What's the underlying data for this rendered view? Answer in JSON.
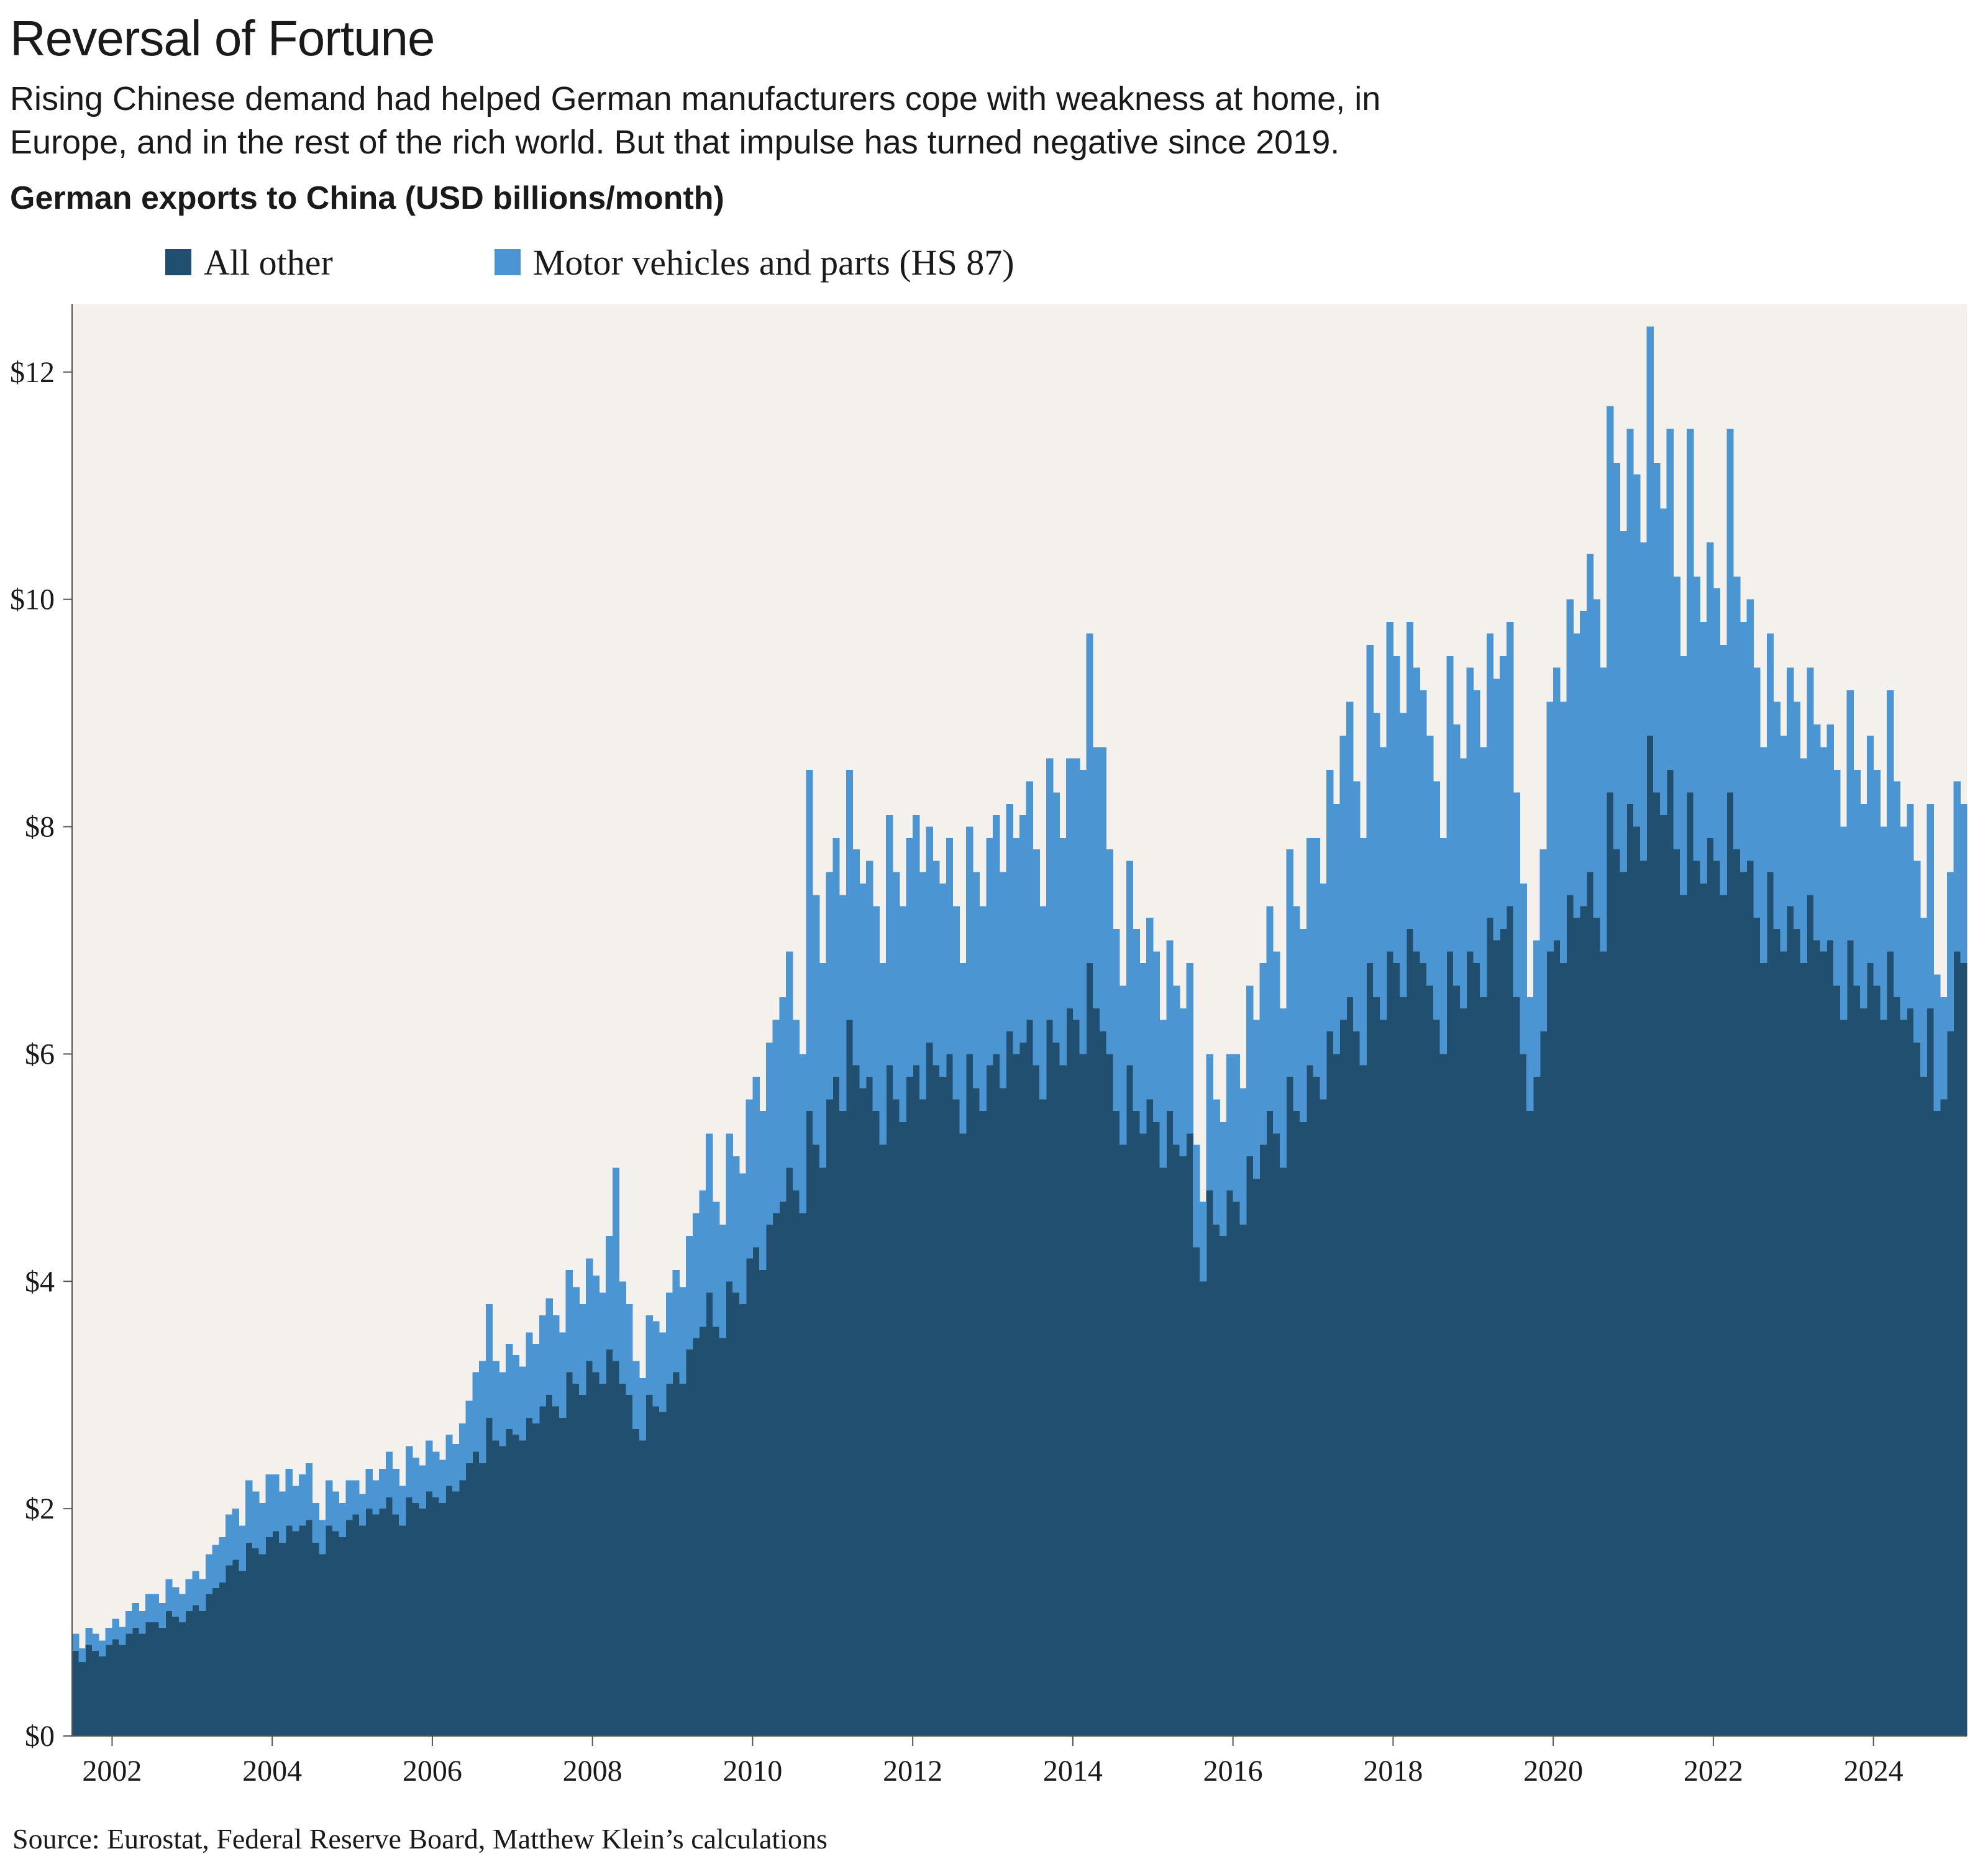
{
  "header": {
    "title": "Reversal of Fortune",
    "subtitle_lines": [
      "Rising Chinese demand had helped German manufacturers cope with weakness at home, in",
      "Europe, and in the rest of the rich world. But that impulse has turned negative since 2019."
    ],
    "chart_heading": "German exports to China (USD billions/month)"
  },
  "legend": [
    {
      "label": "All other",
      "color": "#214f70"
    },
    {
      "label": "Motor vehicles and parts (HS 87)",
      "color": "#4b96d2"
    }
  ],
  "source": "Source: Eurostat, Federal Reserve Board, Matthew Klein’s calculations",
  "chart_data": {
    "type": "bar",
    "stacked": true,
    "title": "German exports to China (USD billions/month)",
    "xlabel": "",
    "ylabel": "USD billions per month",
    "start_month": "2002-01",
    "end_month": "2025-08",
    "ylim": [
      0,
      12.6
    ],
    "plot_bg": "#f4f1ec",
    "axis_color": "#555555",
    "grid": false,
    "legend_position": "top",
    "y_ticks": [
      {
        "value": 0,
        "label": "$0"
      },
      {
        "value": 2,
        "label": "$2"
      },
      {
        "value": 4,
        "label": "$4"
      },
      {
        "value": 6,
        "label": "$6"
      },
      {
        "value": 8,
        "label": "$8"
      },
      {
        "value": 10,
        "label": "$10"
      },
      {
        "value": 12,
        "label": "$12"
      }
    ],
    "x_ticks": [
      {
        "year": 2002,
        "label": "2002"
      },
      {
        "year": 2004,
        "label": "2004"
      },
      {
        "year": 2006,
        "label": "2006"
      },
      {
        "year": 2008,
        "label": "2008"
      },
      {
        "year": 2010,
        "label": "2010"
      },
      {
        "year": 2012,
        "label": "2012"
      },
      {
        "year": 2014,
        "label": "2014"
      },
      {
        "year": 2016,
        "label": "2016"
      },
      {
        "year": 2018,
        "label": "2018"
      },
      {
        "year": 2020,
        "label": "2020"
      },
      {
        "year": 2022,
        "label": "2022"
      },
      {
        "year": 2024,
        "label": "2024"
      }
    ],
    "series": [
      {
        "name": "All other",
        "color": "#214f70",
        "values": [
          0.75,
          0.65,
          0.8,
          0.75,
          0.7,
          0.8,
          0.85,
          0.8,
          0.9,
          0.95,
          0.9,
          1.0,
          1.0,
          0.95,
          1.1,
          1.05,
          1.0,
          1.1,
          1.15,
          1.1,
          1.25,
          1.3,
          1.35,
          1.5,
          1.55,
          1.45,
          1.7,
          1.65,
          1.6,
          1.75,
          1.8,
          1.7,
          1.85,
          1.8,
          1.85,
          1.9,
          1.7,
          1.6,
          1.85,
          1.8,
          1.75,
          1.9,
          1.95,
          1.85,
          2.0,
          1.95,
          2.0,
          2.1,
          1.95,
          1.85,
          2.1,
          2.05,
          2.0,
          2.15,
          2.1,
          2.05,
          2.2,
          2.15,
          2.25,
          2.4,
          2.5,
          2.4,
          2.8,
          2.6,
          2.55,
          2.7,
          2.65,
          2.6,
          2.8,
          2.75,
          2.9,
          3.0,
          2.9,
          2.8,
          3.2,
          3.1,
          3.0,
          3.3,
          3.2,
          3.1,
          3.4,
          3.3,
          3.1,
          3.0,
          2.7,
          2.6,
          3.0,
          2.9,
          2.85,
          3.1,
          3.2,
          3.1,
          3.4,
          3.5,
          3.6,
          3.9,
          3.6,
          3.5,
          4.0,
          3.9,
          3.8,
          4.2,
          4.3,
          4.1,
          4.5,
          4.6,
          4.7,
          5.0,
          4.8,
          4.6,
          5.5,
          5.2,
          5.0,
          5.6,
          5.8,
          5.5,
          6.3,
          5.9,
          5.7,
          5.8,
          5.5,
          5.2,
          5.9,
          5.6,
          5.4,
          5.8,
          5.9,
          5.6,
          6.1,
          5.9,
          5.8,
          6.0,
          5.6,
          5.3,
          6.0,
          5.7,
          5.5,
          5.9,
          6.0,
          5.7,
          6.2,
          6.0,
          6.1,
          6.3,
          5.9,
          5.6,
          6.3,
          6.1,
          5.9,
          6.4,
          6.3,
          6.0,
          6.8,
          6.4,
          6.2,
          6.0,
          5.5,
          5.2,
          5.9,
          5.5,
          5.3,
          5.6,
          5.4,
          5.0,
          5.5,
          5.2,
          5.1,
          5.3,
          4.3,
          4.0,
          4.8,
          4.5,
          4.4,
          4.8,
          4.7,
          4.5,
          5.1,
          4.9,
          5.2,
          5.5,
          5.3,
          5.0,
          5.8,
          5.5,
          5.4,
          5.9,
          5.8,
          5.6,
          6.2,
          6.0,
          6.3,
          6.5,
          6.2,
          5.9,
          6.8,
          6.5,
          6.3,
          6.9,
          6.8,
          6.5,
          7.1,
          6.9,
          6.8,
          6.6,
          6.3,
          6.0,
          6.9,
          6.6,
          6.4,
          6.9,
          6.8,
          6.5,
          7.2,
          7.0,
          7.1,
          7.3,
          6.5,
          6.0,
          5.5,
          5.8,
          6.2,
          6.9,
          7.0,
          6.8,
          7.4,
          7.2,
          7.3,
          7.6,
          7.2,
          6.9,
          8.3,
          7.8,
          7.6,
          8.2,
          8.0,
          7.7,
          8.8,
          8.3,
          8.1,
          8.5,
          7.8,
          7.4,
          8.3,
          7.7,
          7.5,
          7.9,
          7.7,
          7.4,
          8.3,
          7.8,
          7.6,
          7.7,
          7.2,
          6.8,
          7.6,
          7.1,
          6.9,
          7.3,
          7.1,
          6.8,
          7.4,
          7.0,
          6.9,
          7.0,
          6.6,
          6.3,
          7.0,
          6.6,
          6.4,
          6.8,
          6.6,
          6.3,
          6.9,
          6.5,
          6.3,
          6.4,
          6.1,
          5.8,
          6.4,
          5.5,
          5.6,
          6.2,
          6.9,
          6.8
        ]
      },
      {
        "name": "Motor vehicles and parts (HS 87)",
        "color": "#4b96d2",
        "values": [
          0.15,
          0.12,
          0.15,
          0.15,
          0.14,
          0.15,
          0.18,
          0.16,
          0.2,
          0.22,
          0.2,
          0.25,
          0.25,
          0.22,
          0.28,
          0.26,
          0.25,
          0.28,
          0.3,
          0.28,
          0.35,
          0.38,
          0.4,
          0.45,
          0.45,
          0.4,
          0.55,
          0.5,
          0.45,
          0.55,
          0.5,
          0.45,
          0.5,
          0.4,
          0.45,
          0.5,
          0.35,
          0.3,
          0.4,
          0.35,
          0.3,
          0.35,
          0.3,
          0.28,
          0.35,
          0.3,
          0.35,
          0.4,
          0.4,
          0.35,
          0.45,
          0.4,
          0.38,
          0.45,
          0.4,
          0.38,
          0.45,
          0.42,
          0.5,
          0.55,
          0.7,
          0.9,
          1.0,
          0.7,
          0.65,
          0.75,
          0.7,
          0.65,
          0.75,
          0.7,
          0.8,
          0.85,
          0.8,
          0.75,
          0.9,
          0.85,
          0.8,
          0.9,
          0.85,
          0.8,
          1.0,
          1.7,
          0.9,
          0.8,
          0.6,
          0.55,
          0.7,
          0.75,
          0.7,
          0.8,
          0.9,
          0.85,
          1.0,
          1.1,
          1.2,
          1.4,
          1.1,
          1.0,
          1.3,
          1.2,
          1.15,
          1.4,
          1.5,
          1.4,
          1.6,
          1.7,
          1.8,
          1.9,
          1.5,
          1.4,
          3.0,
          2.2,
          1.8,
          2.0,
          2.1,
          1.9,
          2.2,
          1.9,
          1.8,
          1.9,
          1.8,
          1.6,
          2.2,
          2.0,
          1.9,
          2.1,
          2.2,
          2.0,
          1.9,
          1.8,
          1.7,
          1.9,
          1.7,
          1.5,
          2.0,
          1.9,
          1.8,
          2.0,
          2.1,
          1.9,
          2.0,
          1.9,
          2.0,
          2.1,
          1.9,
          1.7,
          2.3,
          2.2,
          2.0,
          2.2,
          2.3,
          2.5,
          2.9,
          2.3,
          2.5,
          1.8,
          1.6,
          1.4,
          1.8,
          1.6,
          1.5,
          1.6,
          1.5,
          1.3,
          1.5,
          1.4,
          1.3,
          1.5,
          0.9,
          0.7,
          1.2,
          1.1,
          1.0,
          1.2,
          1.3,
          1.2,
          1.5,
          1.4,
          1.6,
          1.8,
          1.6,
          1.4,
          2.0,
          1.8,
          1.7,
          2.0,
          2.1,
          1.9,
          2.3,
          2.2,
          2.5,
          2.6,
          2.2,
          2.0,
          2.8,
          2.5,
          2.4,
          2.9,
          2.7,
          2.5,
          2.7,
          2.5,
          2.4,
          2.2,
          2.1,
          1.9,
          2.6,
          2.3,
          2.2,
          2.5,
          2.4,
          2.2,
          2.5,
          2.3,
          2.4,
          2.5,
          1.8,
          1.5,
          1.0,
          1.2,
          1.6,
          2.2,
          2.4,
          2.3,
          2.6,
          2.5,
          2.6,
          2.8,
          2.8,
          2.5,
          3.4,
          3.4,
          3.0,
          3.3,
          3.1,
          2.8,
          3.6,
          2.9,
          2.7,
          3.0,
          2.4,
          2.1,
          3.2,
          2.5,
          2.3,
          2.6,
          2.4,
          2.2,
          3.2,
          2.4,
          2.2,
          2.3,
          2.2,
          1.9,
          2.1,
          2.0,
          1.9,
          2.1,
          2.0,
          1.8,
          2.0,
          1.9,
          1.8,
          1.9,
          1.9,
          1.7,
          2.2,
          1.9,
          1.8,
          2.0,
          1.9,
          1.7,
          2.3,
          1.9,
          1.7,
          1.8,
          1.6,
          1.4,
          1.8,
          1.2,
          0.9,
          1.4,
          1.5,
          1.4
        ]
      }
    ]
  }
}
